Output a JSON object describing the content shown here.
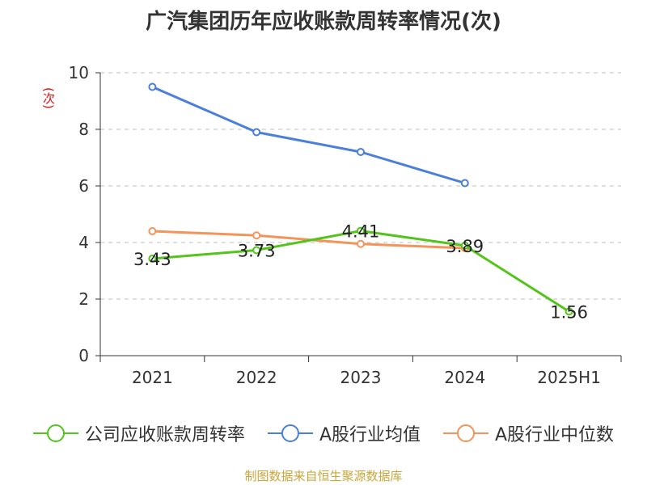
{
  "chart_data": {
    "type": "line",
    "title": "广汽集团历年应收账款周转率情况(次)",
    "ylabel": "(次)",
    "categories": [
      "2021",
      "2022",
      "2023",
      "2024",
      "2025H1"
    ],
    "ylim": [
      0,
      10
    ],
    "yticks": [
      0,
      2,
      4,
      6,
      8,
      10
    ],
    "grid": true,
    "legend_position": "bottom",
    "series": [
      {
        "name": "公司应收账款周转率",
        "color": "#52c41a",
        "values": [
          3.43,
          3.73,
          4.41,
          3.89,
          1.56
        ],
        "labels": [
          "3.43",
          "3.73",
          "4.41",
          "3.89",
          "1.56"
        ]
      },
      {
        "name": "A股行业均值",
        "color": "#4a7fdc",
        "values": [
          9.5,
          7.9,
          7.2,
          6.1,
          null
        ]
      },
      {
        "name": "A股行业中位数",
        "color": "#f4935a",
        "values": [
          4.4,
          4.25,
          3.95,
          3.8,
          null
        ]
      }
    ]
  },
  "footer": {
    "source": "制图数据来自恒生聚源数据库"
  }
}
